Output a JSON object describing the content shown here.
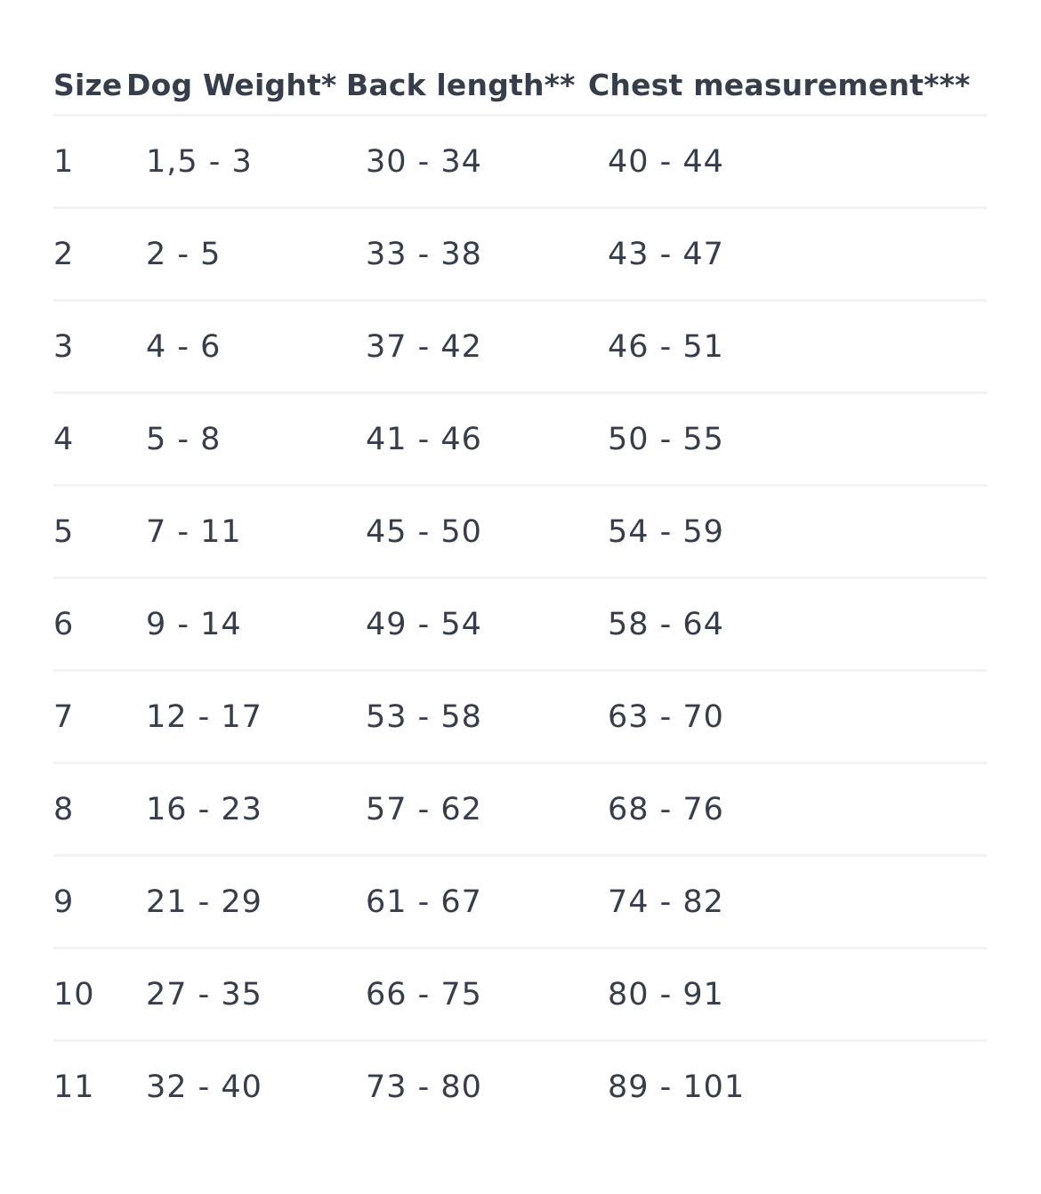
{
  "table": {
    "headers": {
      "size": "Size",
      "weight": "Dog Weight*",
      "back": "Back length**",
      "chest": "Chest measurement***"
    },
    "rows": [
      {
        "size": "1",
        "weight": "1,5 - 3",
        "back": "30 - 34",
        "chest": "40 - 44"
      },
      {
        "size": "2",
        "weight": "2 - 5",
        "back": "33 - 38",
        "chest": "43 - 47"
      },
      {
        "size": "3",
        "weight": "4 - 6",
        "back": "37 - 42",
        "chest": "46 - 51"
      },
      {
        "size": "4",
        "weight": "5 - 8",
        "back": "41 - 46",
        "chest": "50 - 55"
      },
      {
        "size": "5",
        "weight": "7 - 11",
        "back": "45 - 50",
        "chest": "54 - 59"
      },
      {
        "size": "6",
        "weight": "9 - 14",
        "back": "49 - 54",
        "chest": "58 - 64"
      },
      {
        "size": "7",
        "weight": "12 - 17",
        "back": "53 - 58",
        "chest": "63 - 70"
      },
      {
        "size": "8",
        "weight": "16 - 23",
        "back": "57 - 62",
        "chest": "68 - 76"
      },
      {
        "size": "9",
        "weight": "21 - 29",
        "back": "61 - 67",
        "chest": "74 - 82"
      },
      {
        "size": "10",
        "weight": "27 - 35",
        "back": "66 - 75",
        "chest": "80 - 91"
      },
      {
        "size": "11",
        "weight": "32 - 40",
        "back": "73 - 80",
        "chest": "89 - 101"
      }
    ]
  }
}
